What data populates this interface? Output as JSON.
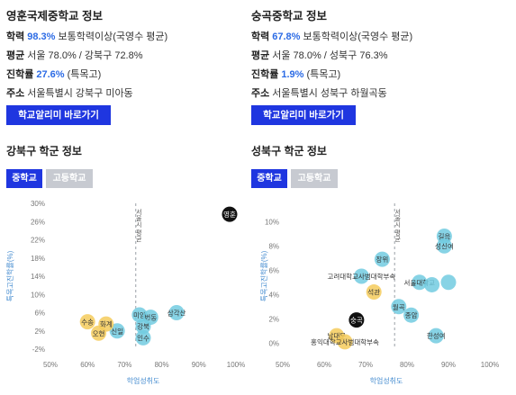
{
  "schools": [
    {
      "name": "영훈국제중학교 정보",
      "lines": [
        {
          "key": "학력",
          "hl": "98.3%",
          "rest": " 보통학력이상(국영수 평균)"
        },
        {
          "key": "평균",
          "hl": "",
          "rest": "서울 78.0% / 강북구 72.8%"
        },
        {
          "key": "진학률",
          "hl": "27.6%",
          "rest": " (특목고)"
        },
        {
          "key": "주소",
          "hl": "",
          "rest": "서울특별시 강북구 미아동"
        }
      ],
      "button": "학교알리미 바로가기",
      "section_title": "강북구 학군 정보",
      "tabs": [
        "중학교",
        "고등학교"
      ],
      "colors": {
        "primary": "#1f36e0",
        "inactive": "#c7cad1",
        "orange": "#f5cb5c",
        "teal": "#72cbe0",
        "black": "#111111"
      },
      "chart_data": {
        "type": "scatter",
        "xlabel": "학업성취도",
        "ylabel": "특목고진학률(%)",
        "xticks": [
          "50%",
          "60%",
          "70%",
          "80%",
          "90%",
          "100%"
        ],
        "yticks": [
          "30%",
          "26%",
          "22%",
          "18%",
          "14%",
          "10%",
          "6%",
          "2%",
          "-2%"
        ],
        "xlim": [
          50,
          100
        ],
        "ylim": [
          -2,
          30
        ],
        "guide": {
          "x": 73,
          "label": "서울시 평균"
        },
        "points": [
          {
            "label": "영훈",
            "x": 98.3,
            "y": 27.6,
            "color": "black"
          },
          {
            "label": "삼각산",
            "x": 84,
            "y": 6,
            "color": "teal"
          },
          {
            "label": "미양",
            "x": 74,
            "y": 5.5,
            "color": "teal"
          },
          {
            "label": "번동",
            "x": 77,
            "y": 5,
            "color": "teal"
          },
          {
            "label": "강북",
            "x": 75,
            "y": 3,
            "color": "teal"
          },
          {
            "label": "신일",
            "x": 68,
            "y": 2,
            "color": "teal"
          },
          {
            "label": "인수",
            "x": 75,
            "y": 0.5,
            "color": "teal"
          },
          {
            "label": "수송",
            "x": 60,
            "y": 4,
            "color": "orange"
          },
          {
            "label": "화계",
            "x": 65,
            "y": 3.5,
            "color": "orange"
          },
          {
            "label": "오현",
            "x": 63,
            "y": 1.5,
            "color": "orange"
          }
        ]
      }
    },
    {
      "name": "숭곡중학교 정보",
      "lines": [
        {
          "key": "학력",
          "hl": "67.8%",
          "rest": " 보통학력이상(국영수 평균)"
        },
        {
          "key": "평균",
          "hl": "",
          "rest": "서울 78.0% / 성북구 76.3%"
        },
        {
          "key": "진학률",
          "hl": "1.9%",
          "rest": " (특목고)"
        },
        {
          "key": "주소",
          "hl": "",
          "rest": "서울특별시 성북구 하월곡동"
        }
      ],
      "button": "학교알리미 바로가기",
      "section_title": "성북구 학군 정보",
      "tabs": [
        "중학교",
        "고등학교"
      ],
      "chart_data": {
        "type": "scatter",
        "xlabel": "학업성취도",
        "ylabel": "특목고진학률(%)",
        "xticks": [
          "50%",
          "60%",
          "70%",
          "80%",
          "90%",
          "100%"
        ],
        "yticks": [
          "10%",
          "8%",
          "6%",
          "4%",
          "2%",
          "0%"
        ],
        "xlim": [
          50,
          100
        ],
        "ylim": [
          -0.5,
          11.5
        ],
        "guide": {
          "x": 77,
          "label": "서울시 평균"
        },
        "points": [
          {
            "label": "숭곡",
            "x": 67.8,
            "y": 1.9,
            "color": "black"
          },
          {
            "label": "길음",
            "x": 89,
            "y": 8.8,
            "color": "teal"
          },
          {
            "label": "성신여",
            "x": 89,
            "y": 8,
            "color": "teal"
          },
          {
            "label": "장위",
            "x": 74,
            "y": 6.9,
            "color": "teal"
          },
          {
            "label": "고려대학교사범대학부속",
            "x": 69,
            "y": 5.5,
            "color": "teal"
          },
          {
            "label": "서울대학교",
            "x": 83,
            "y": 5,
            "color": "teal"
          },
          {
            "label": "",
            "x": 86,
            "y": 4.8,
            "color": "teal"
          },
          {
            "label": "",
            "x": 90,
            "y": 5,
            "color": "teal"
          },
          {
            "label": "석관",
            "x": 72,
            "y": 4.2,
            "color": "orange"
          },
          {
            "label": "월곡",
            "x": 78,
            "y": 3,
            "color": "teal"
          },
          {
            "label": "종암",
            "x": 81,
            "y": 2.3,
            "color": "teal"
          },
          {
            "label": "한성여",
            "x": 87,
            "y": 0.6,
            "color": "teal"
          },
          {
            "label": "남대문",
            "x": 63,
            "y": 0.6,
            "color": "orange"
          },
          {
            "label": "홍익대학교사범대학부속",
            "x": 65,
            "y": 0.1,
            "color": "orange"
          }
        ]
      }
    }
  ]
}
